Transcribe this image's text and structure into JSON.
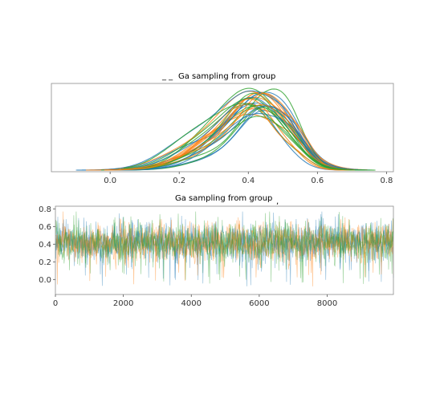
{
  "chart_data": [
    {
      "type": "line",
      "title": "Ga sampling from group",
      "title_prefix_marks": "_ _",
      "xlabel": "",
      "ylabel": "",
      "xlim": [
        -0.17,
        0.82
      ],
      "xticks": [
        0.0,
        0.2,
        0.4,
        0.6,
        0.8
      ],
      "xtick_labels": [
        "0.0",
        "0.2",
        "0.4",
        "0.6",
        "0.8"
      ],
      "yticks_shown": false,
      "grid": false,
      "legend": "none",
      "description_values": {
        "n_curves": 30,
        "main_mode_range": [
          0.4,
          0.46
        ],
        "secondary_mode": 0.53,
        "support": [
          -0.1,
          0.77
        ]
      },
      "series_colors": [
        "#1f77b4",
        "#ff7f0e",
        "#2ca02c"
      ]
    },
    {
      "type": "line",
      "title": "Ga sampling from group",
      "title_suffix_mark": ",",
      "xlabel": "",
      "ylabel": "",
      "xlim": [
        0,
        9950
      ],
      "ylim": [
        -0.17,
        0.83
      ],
      "xticks": [
        0,
        2000,
        4000,
        6000,
        8000
      ],
      "xtick_labels": [
        "0",
        "2000",
        "4000",
        "6000",
        "8000"
      ],
      "yticks": [
        0.0,
        0.2,
        0.4,
        0.6,
        0.8
      ],
      "ytick_labels": [
        "0.0",
        "0.2",
        "0.4",
        "0.6",
        "0.8"
      ],
      "grid": false,
      "legend": "none",
      "trace_summary": {
        "n_draws": 10000,
        "mean": 0.42,
        "typical_range": [
          0.2,
          0.65
        ],
        "min": -0.1,
        "max": 0.77
      },
      "series_colors": [
        "#1f77b4",
        "#ff7f0e",
        "#2ca02c"
      ]
    }
  ]
}
